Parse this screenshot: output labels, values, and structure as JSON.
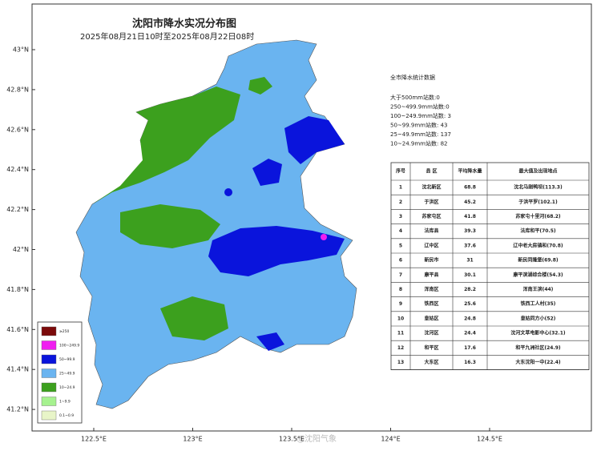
{
  "header": {
    "title": "沈阳市降水实况分布图",
    "subtitle": "2025年08月21日10时至2025年08月22日08时"
  },
  "axes": {
    "lat_ticks": [
      {
        "value": 43,
        "label": "43°N"
      },
      {
        "value": 42.8,
        "label": "42.8°N"
      },
      {
        "value": 42.6,
        "label": "42.6°N"
      },
      {
        "value": 42.4,
        "label": "42.4°N"
      },
      {
        "value": 42.2,
        "label": "42.2°N"
      },
      {
        "value": 42,
        "label": "42°N"
      },
      {
        "value": 41.8,
        "label": "41.8°N"
      },
      {
        "value": 41.6,
        "label": "41.6°N"
      },
      {
        "value": 41.4,
        "label": "41.4°N"
      },
      {
        "value": 41.2,
        "label": "41.2°N"
      }
    ],
    "lon_ticks": [
      {
        "value": 122.5,
        "label": "122.5°E"
      },
      {
        "value": 123,
        "label": "123°E"
      },
      {
        "value": 123.5,
        "label": "123.5°E"
      },
      {
        "value": 124,
        "label": "124°E"
      },
      {
        "value": 124.5,
        "label": "124.5°E"
      }
    ]
  },
  "stats": {
    "title": "全市降水统计数据",
    "lines": [
      "大于500mm站数:0",
      "250~499.9mm站数:0",
      "100~249.9mm站数: 3",
      "50~99.9mm站数: 43",
      "25~49.9mm站数: 137",
      "10~24.9mm站数: 82"
    ]
  },
  "table": {
    "headers": [
      "序号",
      "县 区",
      "平均降水量",
      "最大值及出现地点"
    ],
    "rows": [
      [
        "1",
        "沈北新区",
        "68.8",
        "沈北马刚鸭坝(113.3)"
      ],
      [
        "2",
        "于洪区",
        "45.2",
        "于洪平罗(102.1)"
      ],
      [
        "3",
        "苏家屯区",
        "41.8",
        "苏家屯十里河(68.2)"
      ],
      [
        "4",
        "法库县",
        "39.3",
        "法库和平(70.5)"
      ],
      [
        "5",
        "辽中区",
        "37.6",
        "辽中老大房镇和(70.8)"
      ],
      [
        "6",
        "新民市",
        "31",
        "新民同隆堡(69.8)"
      ],
      [
        "7",
        "康平县",
        "30.1",
        "康平滨湖综合楼(54.3)"
      ],
      [
        "8",
        "浑南区",
        "28.2",
        "浑南王滨(44)"
      ],
      [
        "9",
        "铁西区",
        "25.6",
        "铁西工人村(35)"
      ],
      [
        "10",
        "皇姑区",
        "24.8",
        "皇姑同方小(52)"
      ],
      [
        "11",
        "沈河区",
        "24.4",
        "沈河文萃电影中心(32.1)"
      ],
      [
        "12",
        "和平区",
        "17.6",
        "和平九洲社区(24.9)"
      ],
      [
        "13",
        "大东区",
        "16.3",
        "大东沈阳一中(22.4)"
      ]
    ]
  },
  "legend": [
    {
      "label": "≥250",
      "color": "#7b0a0a"
    },
    {
      "label": "100~249.9",
      "color": "#f01ef0"
    },
    {
      "label": "50~99.9",
      "color": "#0a14dc"
    },
    {
      "label": "25~49.9",
      "color": "#6ab4f0"
    },
    {
      "label": "10~24.9",
      "color": "#3ca01e"
    },
    {
      "label": "1~9.9",
      "color": "#a6f28f"
    },
    {
      "label": "0.1~0.9",
      "color": "#e8f5c8"
    }
  ],
  "watermark": "@沈阳气象"
}
